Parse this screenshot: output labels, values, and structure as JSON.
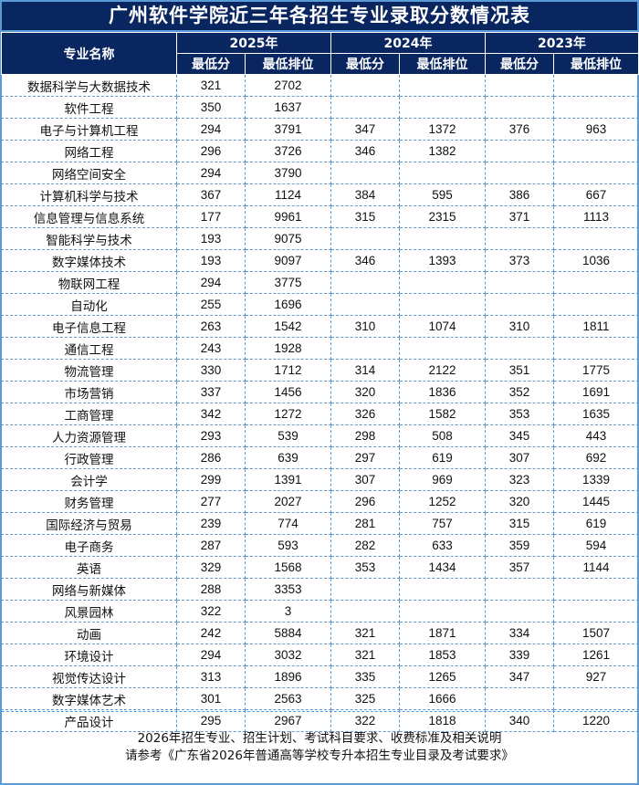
{
  "title": "广州软件学院近三年各招生专业录取分数情况表",
  "header": {
    "major_label": "专业名称",
    "years": [
      "2025年",
      "2024年",
      "2023年"
    ],
    "min_score": "最低分",
    "min_rank": "最低排位"
  },
  "rows": [
    [
      "数据科学与大数据技术",
      "321",
      "2702",
      "",
      "",
      "",
      ""
    ],
    [
      "软件工程",
      "350",
      "1637",
      "",
      "",
      "",
      ""
    ],
    [
      "电子与计算机工程",
      "294",
      "3791",
      "347",
      "1372",
      "376",
      "963"
    ],
    [
      "网络工程",
      "296",
      "3726",
      "346",
      "1382",
      "",
      ""
    ],
    [
      "网络空间安全",
      "294",
      "3790",
      "",
      "",
      "",
      ""
    ],
    [
      "计算机科学与技术",
      "367",
      "1124",
      "384",
      "595",
      "386",
      "667"
    ],
    [
      "信息管理与信息系统",
      "177",
      "9961",
      "315",
      "2315",
      "371",
      "1113"
    ],
    [
      "智能科学与技术",
      "193",
      "9075",
      "",
      "",
      "",
      ""
    ],
    [
      "数字媒体技术",
      "193",
      "9097",
      "346",
      "1393",
      "373",
      "1036"
    ],
    [
      "物联网工程",
      "294",
      "3775",
      "",
      "",
      "",
      ""
    ],
    [
      "自动化",
      "255",
      "1696",
      "",
      "",
      "",
      ""
    ],
    [
      "电子信息工程",
      "263",
      "1542",
      "310",
      "1074",
      "310",
      "1811"
    ],
    [
      "通信工程",
      "243",
      "1928",
      "",
      "",
      "",
      ""
    ],
    [
      "物流管理",
      "330",
      "1712",
      "314",
      "2122",
      "351",
      "1775"
    ],
    [
      "市场营销",
      "337",
      "1456",
      "320",
      "1836",
      "352",
      "1691"
    ],
    [
      "工商管理",
      "342",
      "1272",
      "326",
      "1582",
      "353",
      "1635"
    ],
    [
      "人力资源管理",
      "293",
      "539",
      "298",
      "508",
      "345",
      "443"
    ],
    [
      "行政管理",
      "286",
      "639",
      "297",
      "619",
      "307",
      "692"
    ],
    [
      "会计学",
      "299",
      "1391",
      "307",
      "969",
      "323",
      "1339"
    ],
    [
      "财务管理",
      "277",
      "2027",
      "296",
      "1252",
      "320",
      "1445"
    ],
    [
      "国际经济与贸易",
      "239",
      "774",
      "281",
      "757",
      "315",
      "619"
    ],
    [
      "电子商务",
      "287",
      "593",
      "282",
      "633",
      "359",
      "594"
    ],
    [
      "英语",
      "329",
      "1568",
      "353",
      "1434",
      "357",
      "1144"
    ],
    [
      "网络与新媒体",
      "288",
      "3353",
      "",
      "",
      "",
      ""
    ],
    [
      "风景园林",
      "322",
      "3",
      "",
      "",
      "",
      ""
    ],
    [
      "动画",
      "242",
      "5884",
      "321",
      "1871",
      "334",
      "1507"
    ],
    [
      "环境设计",
      "294",
      "3032",
      "321",
      "1853",
      "339",
      "1261"
    ],
    [
      "视觉传达设计",
      "313",
      "1896",
      "335",
      "1265",
      "347",
      "927"
    ],
    [
      "数字媒体艺术",
      "301",
      "2563",
      "325",
      "1666",
      "",
      ""
    ],
    [
      "产品设计",
      "295",
      "2967",
      "322",
      "1818",
      "340",
      "1220"
    ]
  ],
  "footer": {
    "line1": "2026年招生专业、招生计划、考试科目要求、收费标准及相关说明",
    "line2": "请参考《广东省2026年普通高等学校专升本招生专业目录及考试要求》"
  }
}
